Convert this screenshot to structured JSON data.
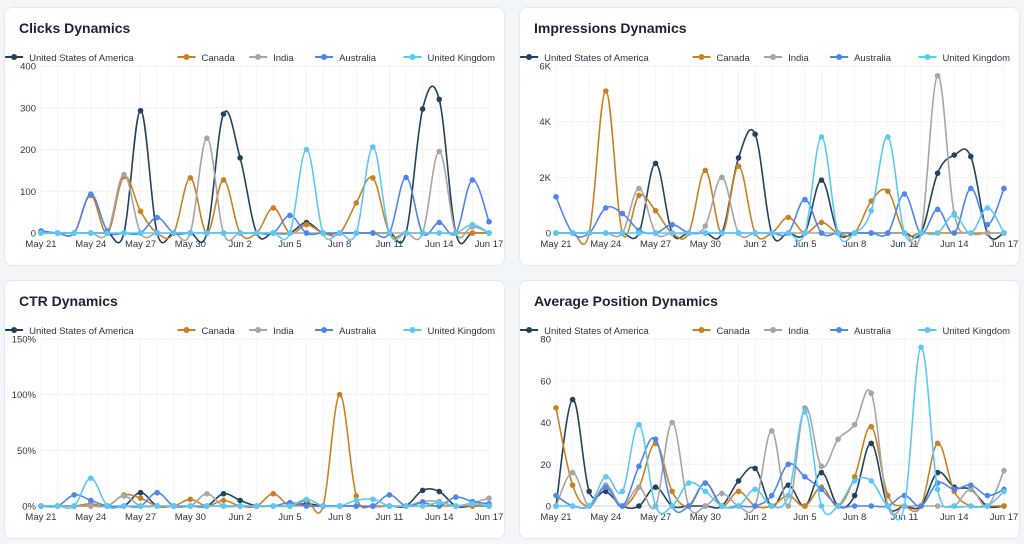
{
  "colors": {
    "United States of America": "#23435c",
    "Canada": "#c98223",
    "India": "#a6a6a6",
    "Australia": "#4f86ec",
    "United Kingdom": "#5cc9f5"
  },
  "legend": [
    "United States of America",
    "Canada",
    "India",
    "Australia",
    "United Kingdom"
  ],
  "chart_data": [
    {
      "type": "line",
      "title": "Clicks Dynamics",
      "xlabels": [
        "May 21",
        "May 24",
        "May 27",
        "May 30",
        "Jun 2",
        "Jun 5",
        "Jun 8",
        "Jun 11",
        "Jun 14",
        "Jun 17"
      ],
      "x": [
        "May 21",
        "May 22",
        "May 23",
        "May 24",
        "May 25",
        "May 26",
        "May 27",
        "May 28",
        "May 29",
        "May 30",
        "May 31",
        "Jun 1",
        "Jun 2",
        "Jun 3",
        "Jun 4",
        "Jun 5",
        "Jun 6",
        "Jun 7",
        "Jun 8",
        "Jun 9",
        "Jun 10",
        "Jun 11",
        "Jun 12",
        "Jun 13",
        "Jun 14",
        "Jun 15",
        "Jun 16",
        "Jun 17"
      ],
      "yticks": [
        "0",
        "100",
        "200",
        "300",
        "400"
      ],
      "ylim": [
        0,
        400
      ],
      "series": [
        {
          "name": "United States of America",
          "values": [
            0,
            0,
            0,
            0,
            0,
            0,
            293,
            0,
            0,
            0,
            0,
            285,
            180,
            0,
            0,
            0,
            25,
            0,
            0,
            0,
            0,
            0,
            0,
            297,
            320,
            0,
            0,
            0
          ]
        },
        {
          "name": "Canada",
          "values": [
            0,
            0,
            0,
            90,
            0,
            135,
            52,
            0,
            0,
            132,
            0,
            127,
            0,
            0,
            60,
            0,
            20,
            0,
            0,
            72,
            132,
            0,
            0,
            0,
            0,
            0,
            0,
            0
          ]
        },
        {
          "name": "India",
          "values": [
            0,
            0,
            0,
            0,
            0,
            140,
            0,
            0,
            0,
            0,
            227,
            0,
            0,
            0,
            0,
            0,
            0,
            0,
            0,
            0,
            0,
            0,
            0,
            0,
            195,
            0,
            15,
            0
          ]
        },
        {
          "name": "Australia",
          "values": [
            5,
            0,
            0,
            93,
            5,
            0,
            0,
            37,
            0,
            0,
            0,
            0,
            0,
            0,
            0,
            42,
            0,
            0,
            0,
            0,
            0,
            0,
            133,
            0,
            25,
            0,
            127,
            27
          ]
        },
        {
          "name": "United Kingdom",
          "values": [
            0,
            0,
            0,
            0,
            0,
            0,
            0,
            0,
            0,
            0,
            0,
            0,
            0,
            0,
            0,
            0,
            200,
            0,
            0,
            0,
            206,
            0,
            0,
            0,
            0,
            0,
            20,
            0
          ]
        }
      ]
    },
    {
      "type": "line",
      "title": "Impressions Dynamics",
      "xlabels": [
        "May 21",
        "May 24",
        "May 27",
        "May 30",
        "Jun 2",
        "Jun 5",
        "Jun 8",
        "Jun 11",
        "Jun 14",
        "Jun 17"
      ],
      "x": [
        "May 21",
        "May 22",
        "May 23",
        "May 24",
        "May 25",
        "May 26",
        "May 27",
        "May 28",
        "May 29",
        "May 30",
        "May 31",
        "Jun 1",
        "Jun 2",
        "Jun 3",
        "Jun 4",
        "Jun 5",
        "Jun 6",
        "Jun 7",
        "Jun 8",
        "Jun 9",
        "Jun 10",
        "Jun 11",
        "Jun 12",
        "Jun 13",
        "Jun 14",
        "Jun 15",
        "Jun 16",
        "Jun 17"
      ],
      "yticks": [
        "0",
        "2K",
        "4K",
        "6K"
      ],
      "ylim": [
        0,
        6000
      ],
      "series": [
        {
          "name": "United States of America",
          "values": [
            0,
            0,
            0,
            0,
            0,
            0,
            2500,
            0,
            0,
            0,
            0,
            2700,
            3550,
            0,
            0,
            0,
            1900,
            0,
            0,
            0,
            0,
            0,
            0,
            2150,
            2800,
            2750,
            0,
            0
          ]
        },
        {
          "name": "Canada",
          "values": [
            0,
            0,
            0,
            5100,
            0,
            1350,
            800,
            0,
            0,
            2250,
            0,
            2400,
            0,
            0,
            560,
            0,
            380,
            0,
            0,
            1150,
            1500,
            0,
            0,
            0,
            0,
            0,
            0,
            0
          ]
        },
        {
          "name": "India",
          "values": [
            0,
            0,
            0,
            0,
            0,
            1600,
            0,
            0,
            0,
            250,
            2000,
            0,
            0,
            0,
            0,
            0,
            0,
            0,
            0,
            0,
            0,
            0,
            0,
            5650,
            700,
            0,
            0,
            0
          ]
        },
        {
          "name": "Australia",
          "values": [
            1300,
            0,
            0,
            900,
            700,
            100,
            0,
            300,
            0,
            0,
            0,
            0,
            0,
            0,
            0,
            1200,
            0,
            0,
            0,
            0,
            0,
            1400,
            0,
            850,
            0,
            1600,
            300,
            1600
          ]
        },
        {
          "name": "United Kingdom",
          "values": [
            0,
            0,
            0,
            0,
            0,
            0,
            0,
            0,
            0,
            0,
            0,
            0,
            0,
            0,
            0,
            0,
            3450,
            0,
            0,
            800,
            3450,
            0,
            0,
            0,
            650,
            0,
            900,
            0
          ]
        }
      ]
    },
    {
      "type": "line",
      "title": "CTR Dynamics",
      "xlabels": [
        "May 21",
        "May 24",
        "May 27",
        "May 30",
        "Jun 2",
        "Jun 5",
        "Jun 8",
        "Jun 11",
        "Jun 14",
        "Jun 17"
      ],
      "x": [
        "May 21",
        "May 22",
        "May 23",
        "May 24",
        "May 25",
        "May 26",
        "May 27",
        "May 28",
        "May 29",
        "May 30",
        "May 31",
        "Jun 1",
        "Jun 2",
        "Jun 3",
        "Jun 4",
        "Jun 5",
        "Jun 6",
        "Jun 7",
        "Jun 8",
        "Jun 9",
        "Jun 10",
        "Jun 11",
        "Jun 12",
        "Jun 13",
        "Jun 14",
        "Jun 15",
        "Jun 16",
        "Jun 17"
      ],
      "yticks": [
        "0%",
        "50%",
        "100%",
        "150%"
      ],
      "ylim": [
        0,
        150
      ],
      "series": [
        {
          "name": "United States of America",
          "values": [
            0,
            0,
            0,
            0,
            0,
            0,
            12,
            0,
            0,
            0,
            0,
            11,
            5,
            0,
            0,
            0,
            2,
            0,
            0,
            0,
            0,
            0,
            0,
            14,
            13,
            0,
            0,
            0
          ]
        },
        {
          "name": "Canada",
          "values": [
            0,
            0,
            0,
            2,
            0,
            10,
            7,
            0,
            0,
            6,
            0,
            5,
            0,
            0,
            11,
            0,
            5,
            0,
            100,
            9,
            0,
            0,
            0,
            0,
            0,
            0,
            0,
            0
          ]
        },
        {
          "name": "India",
          "values": [
            0,
            0,
            0,
            0,
            0,
            9,
            0,
            0,
            0,
            0,
            11,
            0,
            0,
            0,
            0,
            0,
            0,
            0,
            0,
            0,
            0,
            0,
            0,
            4,
            4,
            0,
            3,
            7
          ]
        },
        {
          "name": "Australia",
          "values": [
            0,
            0,
            10,
            5,
            0,
            0,
            0,
            12,
            0,
            0,
            0,
            0,
            0,
            0,
            0,
            3,
            0,
            0,
            0,
            0,
            0,
            10,
            0,
            3,
            0,
            8,
            4,
            2
          ]
        },
        {
          "name": "United Kingdom",
          "values": [
            0,
            0,
            0,
            25,
            0,
            0,
            0,
            0,
            0,
            0,
            0,
            0,
            0,
            0,
            0,
            0,
            6,
            0,
            0,
            5,
            6,
            0,
            0,
            0,
            3,
            0,
            2,
            0
          ]
        }
      ]
    },
    {
      "type": "line",
      "title": "Average Position Dynamics",
      "xlabels": [
        "May 21",
        "May 24",
        "May 27",
        "May 30",
        "Jun 2",
        "Jun 5",
        "Jun 8",
        "Jun 11",
        "Jun 14",
        "Jun 17"
      ],
      "x": [
        "May 21",
        "May 22",
        "May 23",
        "May 24",
        "May 25",
        "May 26",
        "May 27",
        "May 28",
        "May 29",
        "May 30",
        "May 31",
        "Jun 1",
        "Jun 2",
        "Jun 3",
        "Jun 4",
        "Jun 5",
        "Jun 6",
        "Jun 7",
        "Jun 8",
        "Jun 9",
        "Jun 10",
        "Jun 11",
        "Jun 12",
        "Jun 13",
        "Jun 14",
        "Jun 15",
        "Jun 16",
        "Jun 17"
      ],
      "yticks": [
        "0",
        "20",
        "40",
        "60",
        "80"
      ],
      "ylim": [
        0,
        80
      ],
      "series": [
        {
          "name": "United States of America",
          "values": [
            0,
            51,
            7,
            7,
            0,
            0,
            9,
            0,
            0,
            0,
            0,
            12,
            18,
            0,
            10,
            0,
            16,
            0,
            5,
            30,
            0,
            0,
            0,
            16,
            9,
            8,
            0,
            0
          ]
        },
        {
          "name": "Canada",
          "values": [
            47,
            10,
            0,
            10,
            0,
            9,
            30,
            7,
            0,
            11,
            0,
            7,
            0,
            0,
            5,
            0,
            9,
            0,
            14,
            38,
            5,
            0,
            0,
            30,
            7,
            0,
            0,
            0
          ]
        },
        {
          "name": "India",
          "values": [
            0,
            16,
            0,
            10,
            0,
            9,
            0,
            40,
            0,
            0,
            6,
            0,
            0,
            36,
            0,
            47,
            19,
            32,
            39,
            54,
            0,
            0,
            0,
            0,
            0,
            8,
            0,
            17
          ]
        },
        {
          "name": "Australia",
          "values": [
            5,
            0,
            0,
            9,
            0,
            19,
            32,
            0,
            0,
            11,
            0,
            0,
            0,
            5,
            20,
            14,
            8,
            0,
            0,
            0,
            0,
            5,
            0,
            11,
            8,
            10,
            5,
            8
          ]
        },
        {
          "name": "United Kingdom",
          "values": [
            0,
            0,
            0,
            14,
            7,
            39,
            0,
            0,
            11,
            7,
            0,
            0,
            8,
            0,
            5,
            45,
            0,
            0,
            12,
            12,
            0,
            0,
            76,
            8,
            0,
            0,
            0,
            7
          ]
        }
      ]
    }
  ]
}
